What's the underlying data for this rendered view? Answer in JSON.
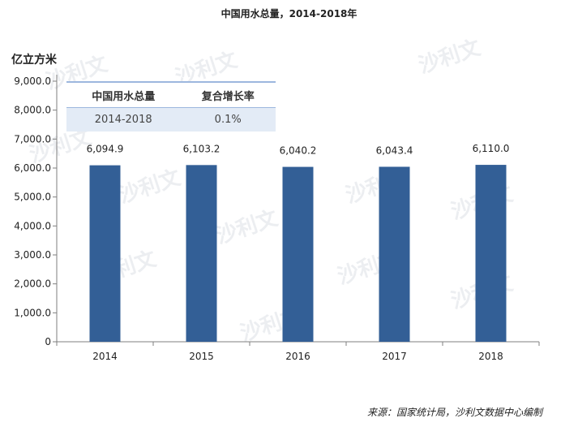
{
  "header": {
    "title": "中国用水总量，2014-2018年"
  },
  "footer": {
    "source": "来源：国家统计局，沙利文数据中心编制"
  },
  "summary_table": {
    "headers": [
      "中国用水总量",
      "复合增长率"
    ],
    "rows": [
      [
        "2014-2018",
        "0.1%"
      ]
    ]
  },
  "watermark": {
    "text": "沙利文"
  },
  "colors": {
    "bar": "#335f96",
    "axis": "#7f7f7f"
  },
  "chart_data": {
    "type": "bar",
    "title": "中国用水总量，2014-2018年",
    "ylabel": "亿立方米",
    "xlabel": "",
    "categories": [
      "2014",
      "2015",
      "2016",
      "2017",
      "2018"
    ],
    "values": [
      6094.9,
      6103.2,
      6040.2,
      6043.4,
      6110.0
    ],
    "value_labels": [
      "6,094.9",
      "6,103.2",
      "6,040.2",
      "6,043.4",
      "6,110.0"
    ],
    "ylim": [
      0,
      9000
    ],
    "yticks": [
      0,
      1000,
      2000,
      3000,
      4000,
      5000,
      6000,
      7000,
      8000,
      9000
    ],
    "ytick_labels": [
      "0",
      "1,000.0",
      "2,000.0",
      "3,000.0",
      "4,000.0",
      "5,000.0",
      "6,000.0",
      "7,000.0",
      "8,000.0",
      "9,000.0"
    ],
    "grid": false,
    "legend": "none"
  }
}
